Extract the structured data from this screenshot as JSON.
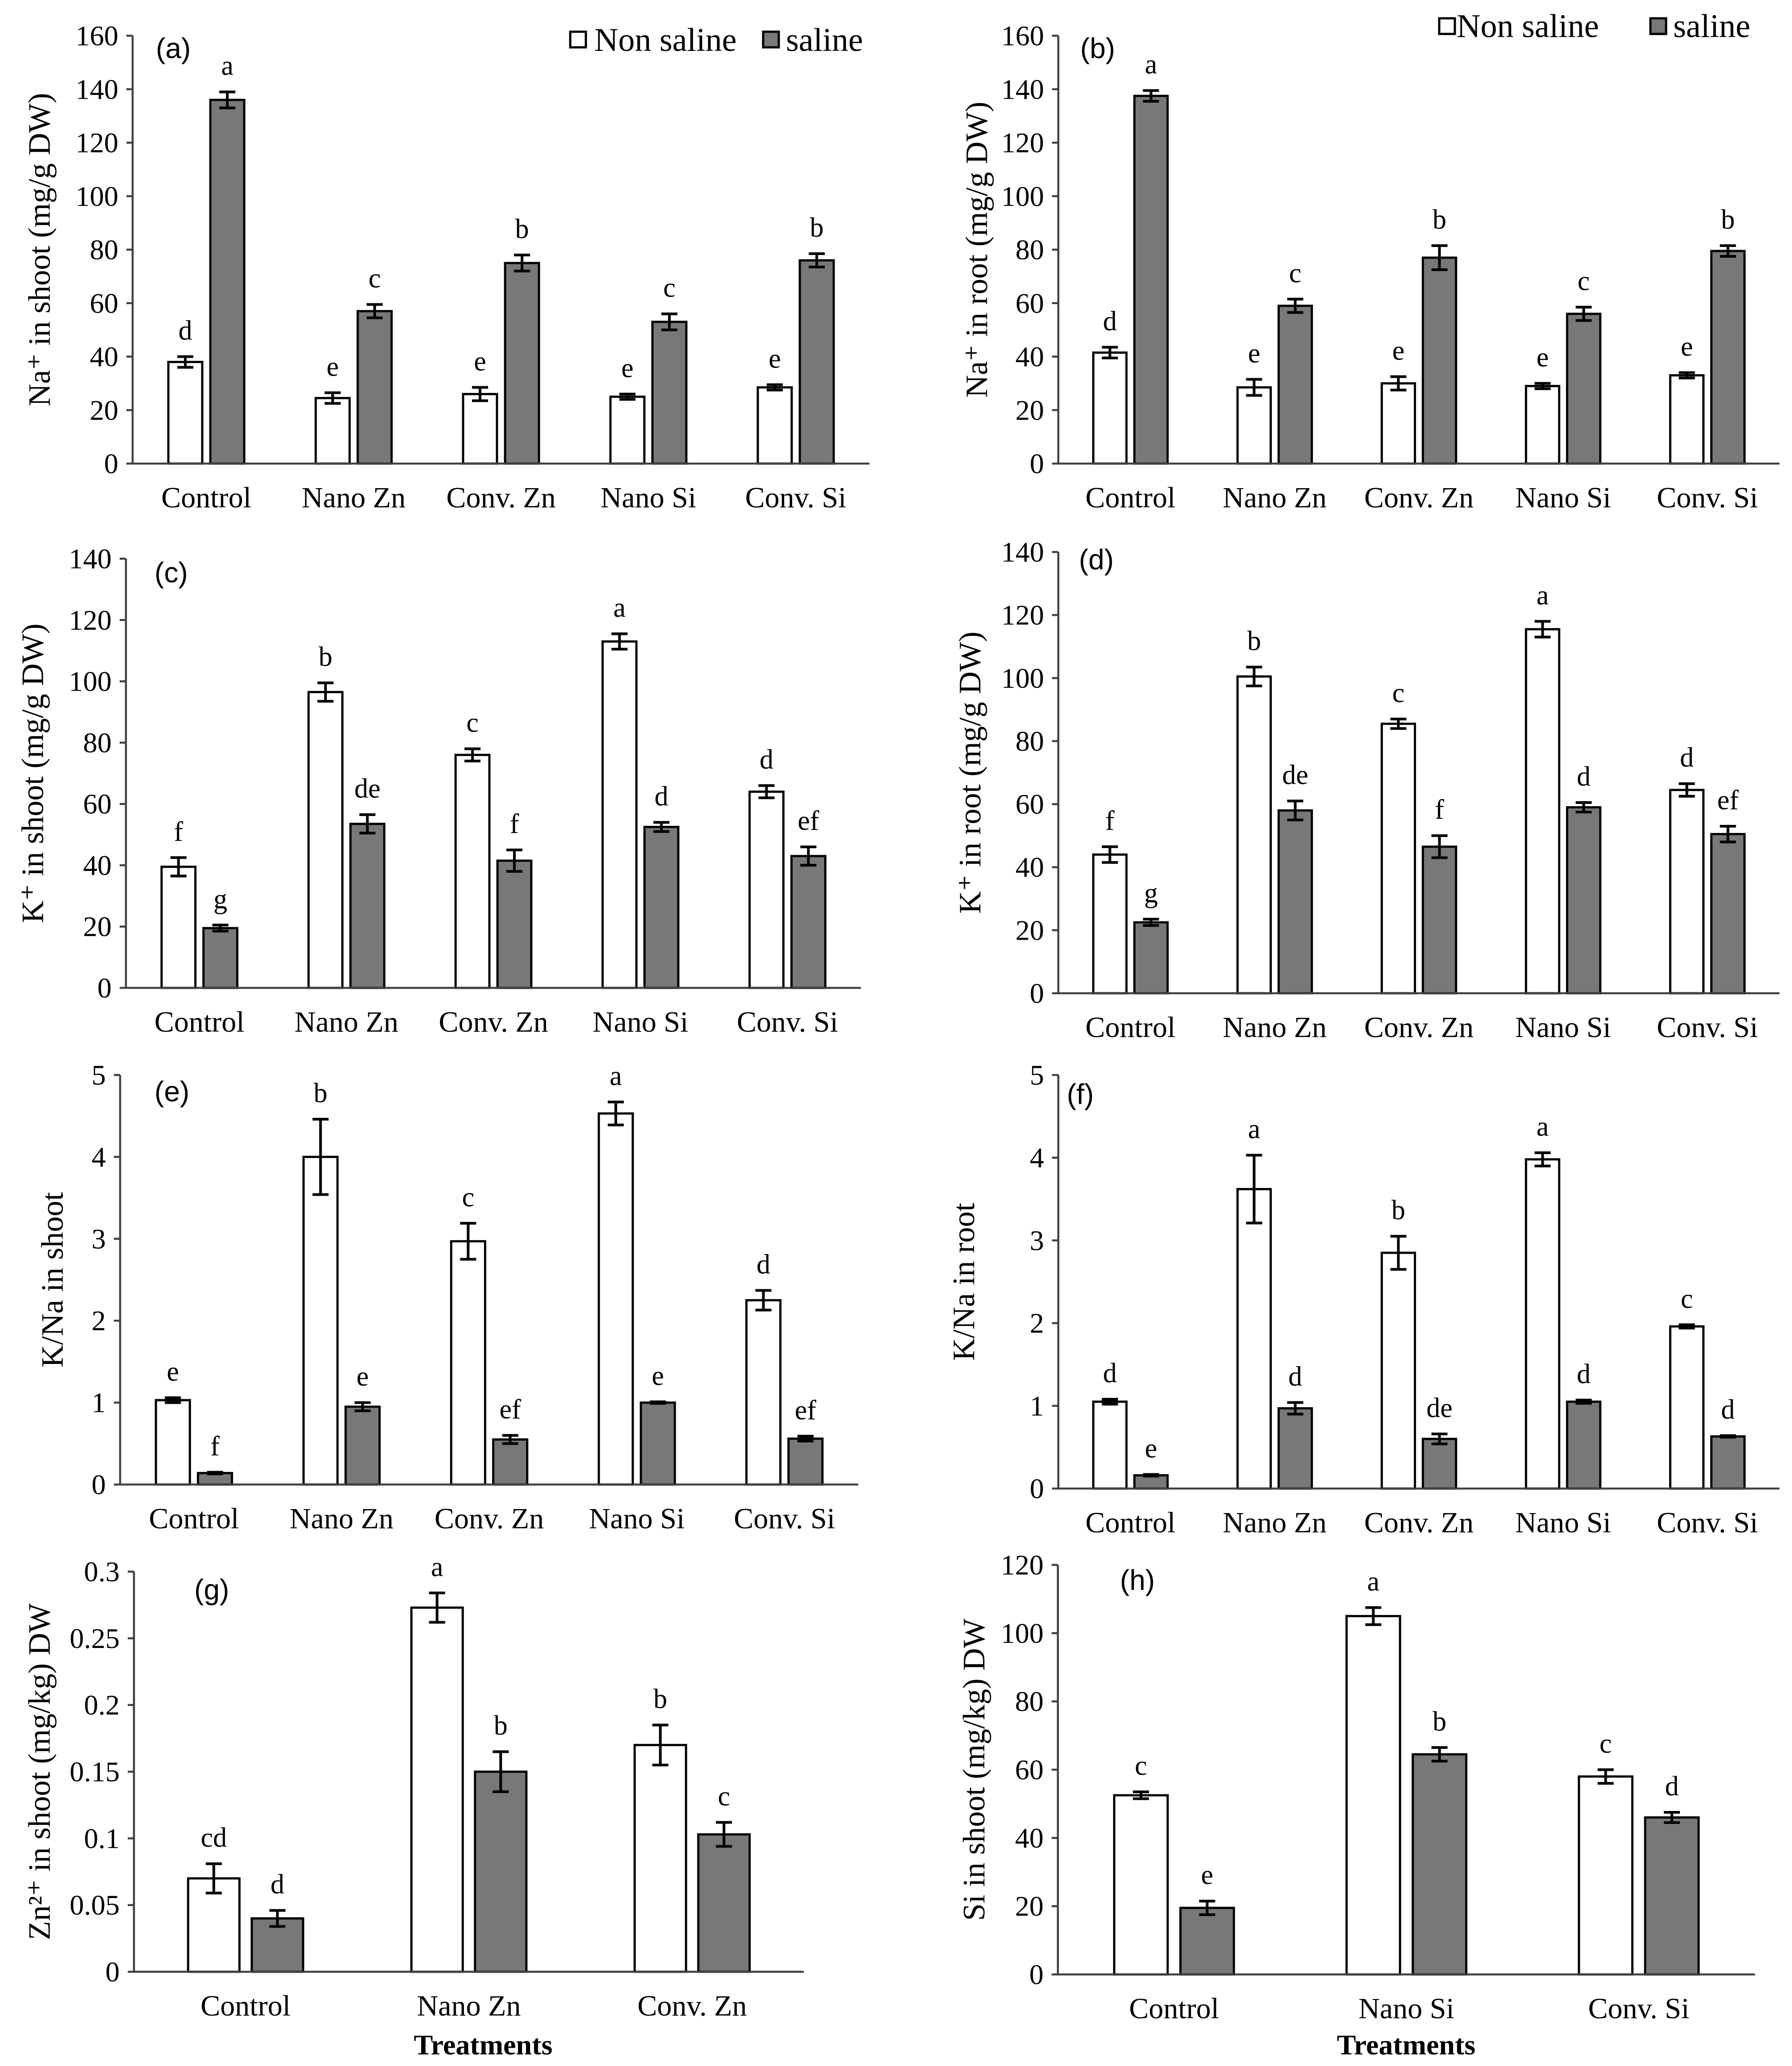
{
  "chart_data": [
    {
      "panel": "(a)",
      "type": "bar",
      "ylabel": "Na⁺ in shoot (mg/g DW)",
      "xlabel": "",
      "legend": "top-right",
      "categories": [
        "Control",
        "Nano Zn",
        "Conv. Zn",
        "Nano Si",
        "Conv. Si"
      ],
      "ylim": [
        0,
        160
      ],
      "yticks": [
        0,
        20,
        40,
        60,
        80,
        100,
        120,
        140,
        160
      ],
      "series": [
        {
          "name": "Non saline",
          "color": "#ffffff",
          "values": [
            38,
            24.5,
            26,
            25,
            28.5
          ],
          "errors": [
            2,
            2,
            2.5,
            1,
            1
          ],
          "letters": [
            "d",
            "e",
            "e",
            "e",
            "e"
          ]
        },
        {
          "name": "saline",
          "color": "#787878",
          "values": [
            136,
            57,
            75,
            53,
            76
          ],
          "errors": [
            3,
            2.5,
            3,
            3,
            2.5
          ],
          "letters": [
            "a",
            "c",
            "b",
            "c",
            "b"
          ]
        }
      ]
    },
    {
      "panel": "(b)",
      "type": "bar",
      "ylabel": "Na⁺ in root (mg/g DW)",
      "xlabel": "",
      "legend": "top-right",
      "categories": [
        "Control",
        "Nano Zn",
        "Conv. Zn",
        "Nano Si",
        "Conv. Si"
      ],
      "ylim": [
        0,
        160
      ],
      "yticks": [
        0,
        20,
        40,
        60,
        80,
        100,
        120,
        140,
        160
      ],
      "series": [
        {
          "name": "Non saline",
          "color": "#ffffff",
          "values": [
            41.5,
            28.5,
            30,
            29,
            33
          ],
          "errors": [
            2,
            3,
            2.5,
            1,
            1
          ],
          "letters": [
            "d",
            "e",
            "e",
            "e",
            "e"
          ]
        },
        {
          "name": "saline",
          "color": "#787878",
          "values": [
            137.5,
            59,
            77,
            56,
            79.5
          ],
          "errors": [
            2,
            2.5,
            4.5,
            2.5,
            2
          ],
          "letters": [
            "a",
            "c",
            "b",
            "c",
            "b"
          ]
        }
      ]
    },
    {
      "panel": "(c)",
      "type": "bar",
      "ylabel": "K⁺ in shoot (mg/g DW)",
      "xlabel": "",
      "legend": "none",
      "categories": [
        "Control",
        "Nano Zn",
        "Conv. Zn",
        "Nano Si",
        "Conv. Si"
      ],
      "ylim": [
        0,
        140
      ],
      "yticks": [
        0,
        20,
        40,
        60,
        80,
        100,
        120,
        140
      ],
      "series": [
        {
          "name": "Non saline",
          "color": "#ffffff",
          "values": [
            39.5,
            96.5,
            76,
            113,
            64
          ],
          "errors": [
            3,
            3,
            2,
            2.5,
            2
          ],
          "letters": [
            "f",
            "b",
            "c",
            "a",
            "d"
          ]
        },
        {
          "name": "saline",
          "color": "#787878",
          "values": [
            19.5,
            53.5,
            41.5,
            52.5,
            43
          ],
          "errors": [
            1,
            3,
            3.5,
            1.5,
            3
          ],
          "letters": [
            "g",
            "de",
            "f",
            "d",
            "ef"
          ]
        }
      ]
    },
    {
      "panel": "(d)",
      "type": "bar",
      "ylabel": "K⁺ in root (mg/g DW)",
      "xlabel": "",
      "legend": "none",
      "categories": [
        "Control",
        "Nano Zn",
        "Conv. Zn",
        "Nano Si",
        "Conv. Si"
      ],
      "ylim": [
        0,
        140
      ],
      "yticks": [
        0,
        20,
        40,
        60,
        80,
        100,
        120,
        140
      ],
      "series": [
        {
          "name": "Non saline",
          "color": "#ffffff",
          "values": [
            44,
            100.5,
            85.5,
            115.5,
            64.5
          ],
          "errors": [
            2.5,
            3,
            1.5,
            2.5,
            2
          ],
          "letters": [
            "f",
            "b",
            "c",
            "a",
            "d"
          ]
        },
        {
          "name": "saline",
          "color": "#787878",
          "values": [
            22.5,
            58,
            46.5,
            59,
            50.5
          ],
          "errors": [
            1,
            3,
            3.5,
            1.5,
            2.5
          ],
          "letters": [
            "g",
            "de",
            "f",
            "d",
            "ef"
          ]
        }
      ]
    },
    {
      "panel": "(e)",
      "type": "bar",
      "ylabel": "K/Na in shoot",
      "xlabel": "",
      "legend": "none",
      "categories": [
        "Control",
        "Nano Zn",
        "Conv. Zn",
        "Nano Si",
        "Conv. Si"
      ],
      "ylim": [
        0,
        5
      ],
      "yticks": [
        0,
        1,
        2,
        3,
        4,
        5
      ],
      "series": [
        {
          "name": "Non saline",
          "color": "#ffffff",
          "values": [
            1.03,
            4.0,
            2.97,
            4.53,
            2.25
          ],
          "errors": [
            0.03,
            0.46,
            0.22,
            0.14,
            0.12
          ],
          "letters": [
            "e",
            "b",
            "c",
            "a",
            "d"
          ]
        },
        {
          "name": "saline",
          "color": "#787878",
          "values": [
            0.14,
            0.95,
            0.55,
            1.0,
            0.56
          ],
          "errors": [
            0.01,
            0.05,
            0.05,
            0.01,
            0.03
          ],
          "letters": [
            "f",
            "e",
            "ef",
            "e",
            "ef"
          ]
        }
      ]
    },
    {
      "panel": "(f)",
      "type": "bar",
      "ylabel": "K/Na in root",
      "xlabel": "",
      "legend": "none",
      "categories": [
        "Control",
        "Nano Zn",
        "Conv. Zn",
        "Nano Si",
        "Conv. Si"
      ],
      "ylim": [
        0,
        5
      ],
      "yticks": [
        0,
        1,
        2,
        3,
        4,
        5
      ],
      "series": [
        {
          "name": "Non saline",
          "color": "#ffffff",
          "values": [
            1.05,
            3.62,
            2.85,
            3.98,
            1.96
          ],
          "errors": [
            0.03,
            0.41,
            0.2,
            0.08,
            0.02
          ],
          "letters": [
            "d",
            "a",
            "b",
            "a",
            "c"
          ]
        },
        {
          "name": "saline",
          "color": "#787878",
          "values": [
            0.16,
            0.97,
            0.6,
            1.05,
            0.63
          ],
          "errors": [
            0.01,
            0.07,
            0.06,
            0.02,
            0.01
          ],
          "letters": [
            "e",
            "d",
            "de",
            "d",
            "d"
          ]
        }
      ]
    },
    {
      "panel": "(g)",
      "type": "bar",
      "ylabel": "Zn²⁺ in shoot (mg/kg) DW",
      "xlabel": "Treatments",
      "legend": "none",
      "categories": [
        "Control",
        "Nano Zn",
        "Conv. Zn"
      ],
      "ylim": [
        0,
        0.3
      ],
      "yticks": [
        0,
        0.05,
        0.1,
        0.15,
        0.2,
        0.25,
        0.3
      ],
      "series": [
        {
          "name": "Non saline",
          "color": "#ffffff",
          "values": [
            0.07,
            0.273,
            0.17
          ],
          "errors": [
            0.011,
            0.011,
            0.015
          ],
          "letters": [
            "cd",
            "a",
            "b"
          ]
        },
        {
          "name": "saline",
          "color": "#787878",
          "values": [
            0.04,
            0.15,
            0.103
          ],
          "errors": [
            0.006,
            0.015,
            0.009
          ],
          "letters": [
            "d",
            "b",
            "c"
          ]
        }
      ]
    },
    {
      "panel": "(h)",
      "type": "bar",
      "ylabel": "Si in shoot (mg/kg) DW",
      "xlabel": "Treatments",
      "legend": "none",
      "categories": [
        "Control",
        "Nano Si",
        "Conv. Si"
      ],
      "ylim": [
        0,
        120
      ],
      "yticks": [
        0,
        20,
        40,
        60,
        80,
        100,
        120
      ],
      "series": [
        {
          "name": "Non saline",
          "color": "#ffffff",
          "values": [
            52.5,
            105,
            58
          ],
          "errors": [
            1,
            2.5,
            2
          ],
          "letters": [
            "c",
            "a",
            "c"
          ]
        },
        {
          "name": "saline",
          "color": "#787878",
          "values": [
            19.5,
            64.5,
            46
          ],
          "errors": [
            2,
            2,
            1.5
          ],
          "letters": [
            "e",
            "b",
            "d"
          ]
        }
      ]
    }
  ]
}
